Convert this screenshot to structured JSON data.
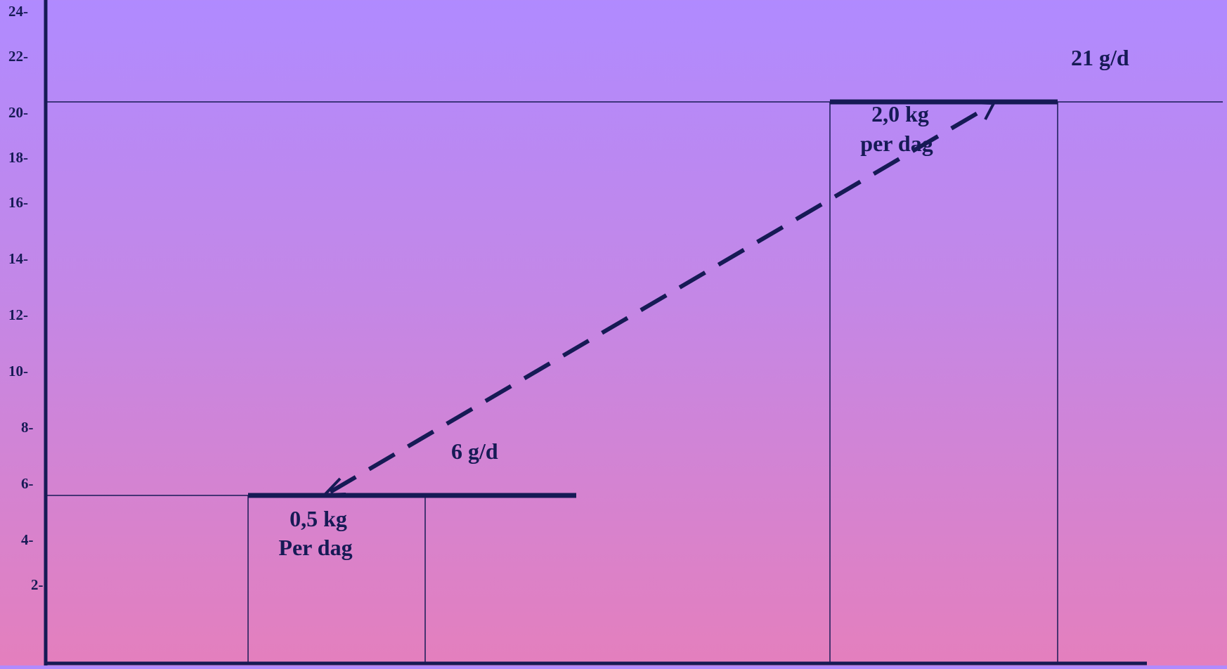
{
  "chart_data": {
    "type": "line",
    "title": "",
    "xlabel": "",
    "ylabel": "",
    "y_ticks": [
      "24-",
      "22-",
      "20-",
      "18-",
      "16-",
      "14-",
      "12-",
      "10-",
      "8-",
      "6-",
      "4-",
      "2-"
    ],
    "y_tick_values": [
      24,
      22,
      20,
      18,
      16,
      14,
      12,
      10,
      8,
      6,
      4,
      2
    ],
    "ylim": [
      0,
      24
    ],
    "series": [
      {
        "points": [
          {
            "x": 0.5,
            "y": 6,
            "label": "0,5 kg\nPer dag"
          },
          {
            "x": 2.0,
            "y": 21,
            "label": "2,0 kg\nper dag"
          }
        ]
      }
    ],
    "annotations": {
      "low_rate": "6 g/d",
      "high_rate": "21 g/d",
      "low_intake_line1": "0,5 kg",
      "low_intake_line2": "Per dag",
      "high_intake_line1": "2,0 kg",
      "high_intake_line2": "per dag"
    },
    "grid": false
  },
  "colors": {
    "ink": "#161a55",
    "background_top": "#b08aff",
    "background_bottom": "#e47fbd"
  }
}
